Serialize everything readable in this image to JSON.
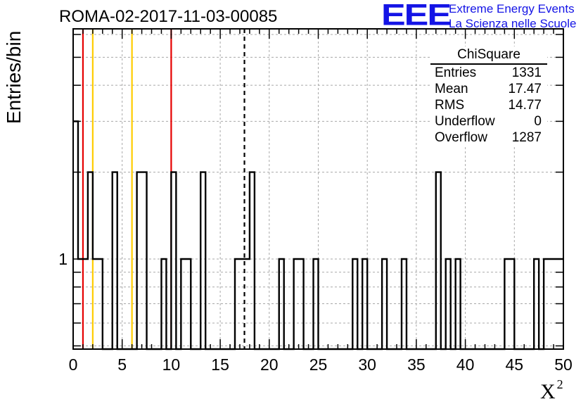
{
  "chart_data": {
    "type": "histogram",
    "title": "ROMA-02-2017-11-03-00085",
    "xlabel": "X",
    "xlabel_superscript": "2",
    "ylabel": "Entries/bin",
    "x_ticks": [
      "0",
      "5",
      "10",
      "15",
      "20",
      "25",
      "30",
      "35",
      "40",
      "45",
      "50"
    ],
    "y_ticks": [
      "1"
    ],
    "xlim": [
      0,
      50
    ],
    "y_scale": "log",
    "grid": true,
    "bin_width": 0.5,
    "bins": [
      {
        "x": 0.0,
        "y": 3
      },
      {
        "x": 0.5,
        "y": 1
      },
      {
        "x": 1.0,
        "y": 1
      },
      {
        "x": 1.5,
        "y": 2
      },
      {
        "x": 2.0,
        "y": 1
      },
      {
        "x": 2.5,
        "y": 1
      },
      {
        "x": 4.0,
        "y": 2
      },
      {
        "x": 6.5,
        "y": 2
      },
      {
        "x": 7.0,
        "y": 2
      },
      {
        "x": 9.0,
        "y": 1
      },
      {
        "x": 10.0,
        "y": 2
      },
      {
        "x": 11.0,
        "y": 1
      },
      {
        "x": 11.5,
        "y": 1
      },
      {
        "x": 13.0,
        "y": 2
      },
      {
        "x": 16.5,
        "y": 1
      },
      {
        "x": 17.0,
        "y": 1
      },
      {
        "x": 17.5,
        "y": 1
      },
      {
        "x": 18.0,
        "y": 2
      },
      {
        "x": 21.0,
        "y": 1
      },
      {
        "x": 22.5,
        "y": 1
      },
      {
        "x": 23.0,
        "y": 1
      },
      {
        "x": 24.5,
        "y": 1
      },
      {
        "x": 28.5,
        "y": 1
      },
      {
        "x": 29.5,
        "y": 1
      },
      {
        "x": 31.5,
        "y": 1
      },
      {
        "x": 33.5,
        "y": 1
      },
      {
        "x": 37.0,
        "y": 2
      },
      {
        "x": 38.0,
        "y": 1
      },
      {
        "x": 39.0,
        "y": 1
      },
      {
        "x": 44.0,
        "y": 1
      },
      {
        "x": 44.5,
        "y": 1
      },
      {
        "x": 47.0,
        "y": 1
      },
      {
        "x": 48.0,
        "y": 1
      },
      {
        "x": 48.5,
        "y": 1
      },
      {
        "x": 49.0,
        "y": 1
      },
      {
        "x": 49.5,
        "y": 1
      }
    ],
    "vertical_lines": [
      {
        "x": 1.0,
        "color": "#e60000",
        "style": "solid"
      },
      {
        "x": 2.0,
        "color": "#ffcc00",
        "style": "solid"
      },
      {
        "x": 6.0,
        "color": "#ffcc00",
        "style": "solid"
      },
      {
        "x": 10.0,
        "color": "#e60000",
        "style": "solid"
      },
      {
        "x": 17.47,
        "color": "#000000",
        "style": "dashed"
      }
    ],
    "stats_box": {
      "title": "ChiSquare",
      "rows": [
        {
          "label": "Entries",
          "value": "1331"
        },
        {
          "label": "Mean",
          "value": "17.47"
        },
        {
          "label": "RMS",
          "value": "14.77"
        },
        {
          "label": "Underflow",
          "value": "0"
        },
        {
          "label": "Overflow",
          "value": "1287"
        }
      ]
    }
  },
  "logo": {
    "text": "EEE",
    "line1": "Extreme Energy Events",
    "line2": "La Scienza nelle Scuole",
    "color": "#1414e6"
  }
}
